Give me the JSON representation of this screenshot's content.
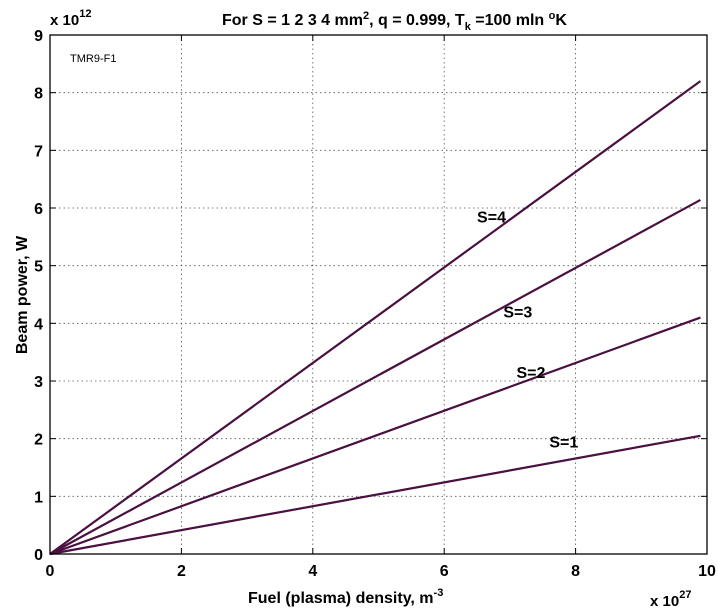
{
  "chart_data": {
    "type": "line",
    "title": {
      "prefix": "For S = 1  2  3  4 mm",
      "prefix_sup": "2",
      "middle": ", q = 0.999, T",
      "middle_sub": "k",
      "suffix": " =100 mln ",
      "suffix_sup": "o",
      "end": "K"
    },
    "annotation": "TMR9-F1",
    "xlabel": {
      "main": "Fuel (plasma) density, m",
      "sup": "-3"
    },
    "ylabel": "Beam power, W",
    "x_multiplier": {
      "base": "x 10",
      "exp": "27"
    },
    "y_multiplier": {
      "base": "x 10",
      "exp": "12"
    },
    "xlim": [
      0,
      10
    ],
    "ylim": [
      0,
      9
    ],
    "x_ticks": [
      0,
      2,
      4,
      6,
      8,
      10
    ],
    "y_ticks": [
      0,
      1,
      2,
      3,
      4,
      5,
      6,
      7,
      8,
      9
    ],
    "grid": true,
    "line_color": "#4a1040",
    "series": [
      {
        "name": "S=1",
        "x": [
          0,
          9.9
        ],
        "y": [
          0,
          2.05
        ],
        "label_at": [
          7.6,
          1.85
        ]
      },
      {
        "name": "S=2",
        "x": [
          0,
          9.9
        ],
        "y": [
          0,
          4.1
        ],
        "label_at": [
          7.1,
          3.05
        ]
      },
      {
        "name": "S=3",
        "x": [
          0,
          9.9
        ],
        "y": [
          0,
          6.14
        ],
        "label_at": [
          6.9,
          4.1
        ]
      },
      {
        "name": "S=4",
        "x": [
          0,
          9.9
        ],
        "y": [
          0,
          8.2
        ],
        "label_at": [
          6.5,
          5.75
        ]
      }
    ]
  }
}
